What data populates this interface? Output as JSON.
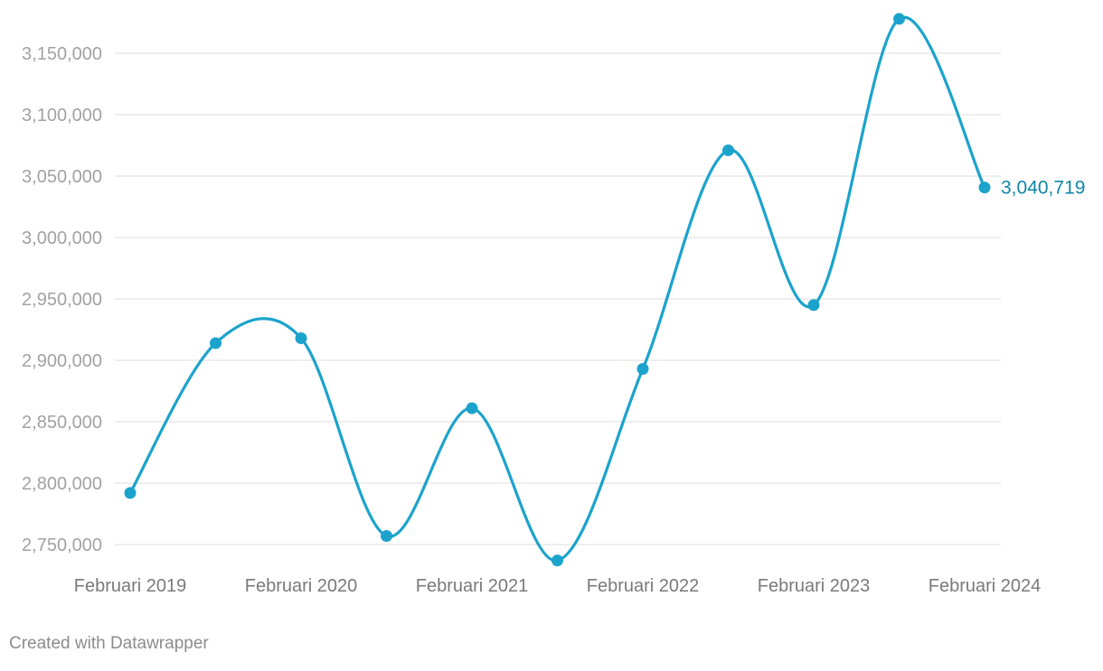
{
  "chart_data": {
    "type": "line",
    "title": "",
    "xlabel": "",
    "ylabel": "",
    "x_tick_labels": [
      "Februari 2019",
      "Februari 2020",
      "Februari 2021",
      "Februari 2022",
      "Februari 2023",
      "Februari 2024"
    ],
    "y_ticks": [
      2750000,
      2800000,
      2850000,
      2900000,
      2950000,
      3000000,
      3050000,
      3100000,
      3150000
    ],
    "y_tick_labels": [
      "2,750,000",
      "2,800,000",
      "2,850,000",
      "2,900,000",
      "2,950,000",
      "3,000,000",
      "3,050,000",
      "3,100,000",
      "3,150,000"
    ],
    "ylim": [
      2750000,
      3150000
    ],
    "x": [
      "Februari 2019",
      "Agustus 2019",
      "Februari 2020",
      "Agustus 2020",
      "Februari 2021",
      "Agustus 2021",
      "Februari 2022",
      "Agustus 2022",
      "Februari 2023",
      "Agustus 2023",
      "Februari 2024"
    ],
    "series": [
      {
        "values": [
          2792000,
          2914000,
          2918000,
          2757000,
          2861000,
          2737000,
          2893000,
          3071000,
          2945000,
          3178000,
          3040719
        ]
      }
    ],
    "end_label": "3,040,719",
    "grid": true,
    "legend": "none",
    "line_color": "#1ba3cc",
    "label_color": "#0f86a8"
  },
  "footer": {
    "credit": "Created with Datawrapper"
  }
}
